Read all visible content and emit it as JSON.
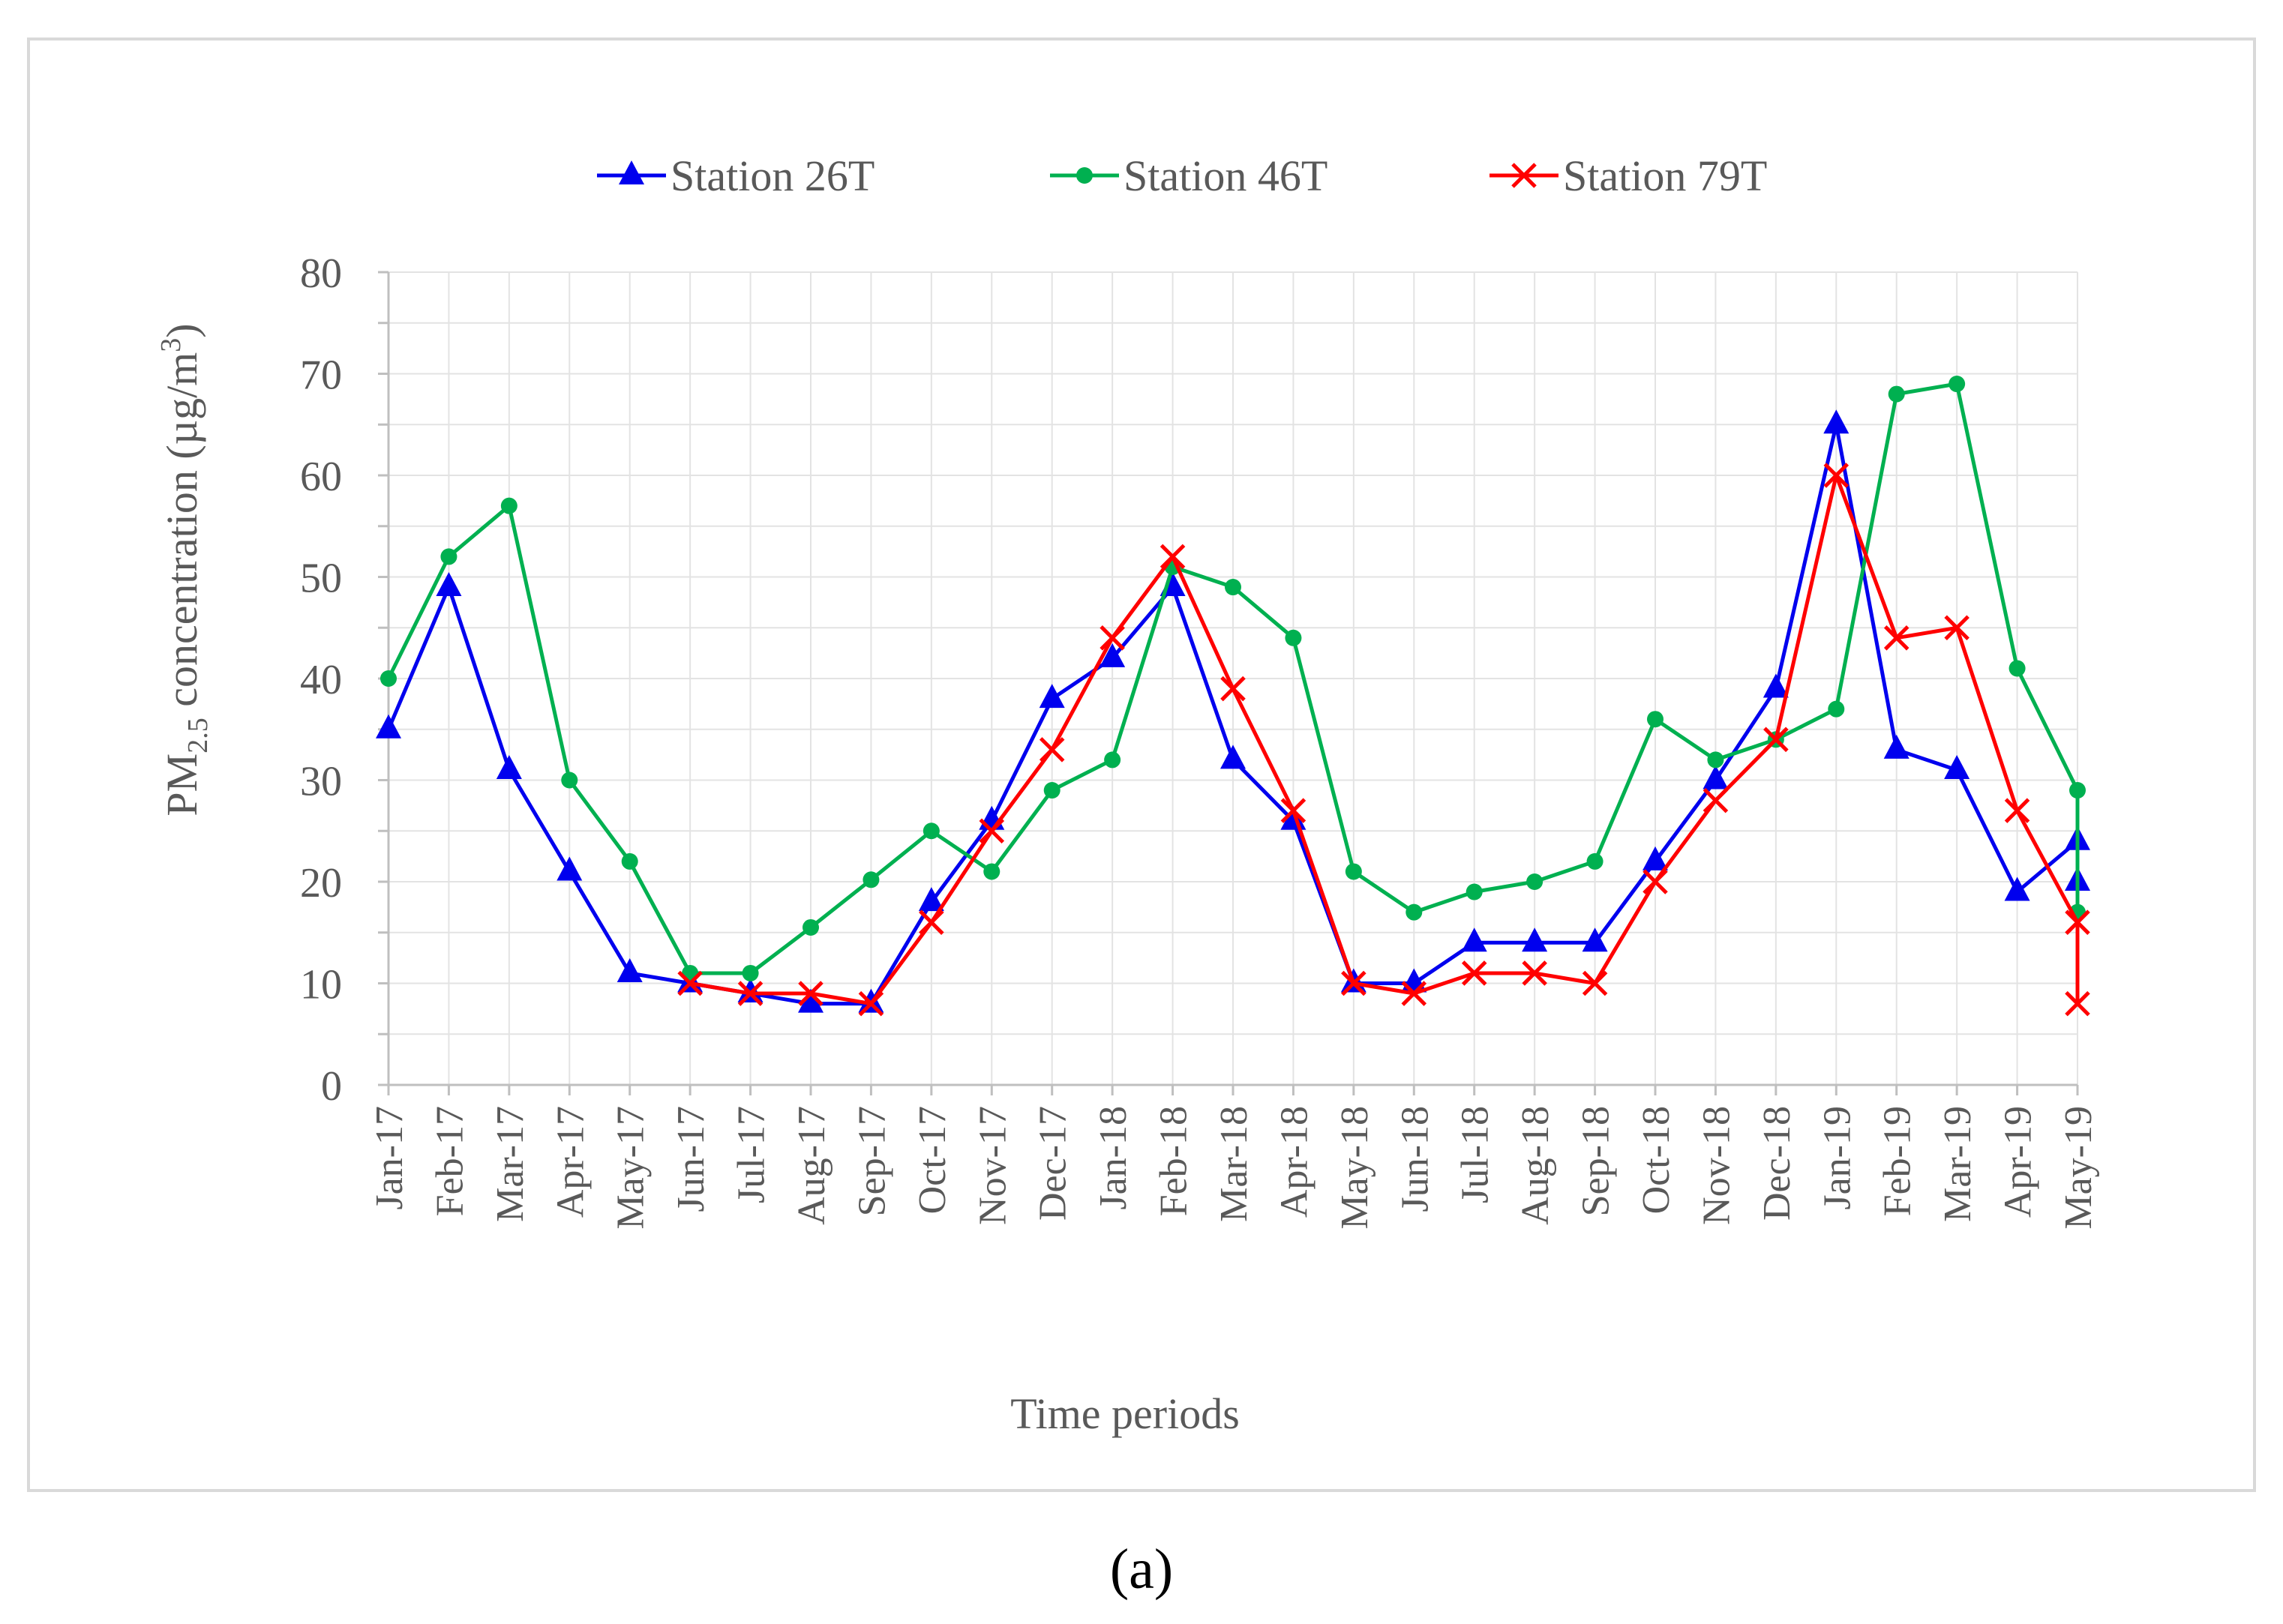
{
  "caption": "(a)",
  "chart_data": {
    "type": "line",
    "title": "",
    "xlabel": "Time periods",
    "ylabel_main": "PM",
    "ylabel_sub": "2.5",
    "ylabel_rest": " concentration (µg/m",
    "ylabel_sup": "3",
    "ylabel_close": ")",
    "ylim": [
      0,
      80
    ],
    "yticks": [
      0,
      10,
      20,
      30,
      40,
      50,
      60,
      70,
      80
    ],
    "grid": true,
    "legend_position": "top-center",
    "categories": [
      "Jan-17",
      "Feb-17",
      "Mar-17",
      "Apr-17",
      "May-17",
      "Jun-17",
      "Jul-17",
      "Aug-17",
      "Sep-17",
      "Oct-17",
      "Nov-17",
      "Dec-17",
      "Jan-18",
      "Feb-18",
      "Mar-18",
      "Apr-18",
      "May-18",
      "Jun-18",
      "Jul-18",
      "Aug-18",
      "Sep-18",
      "Oct-18",
      "Nov-18",
      "Dec-18",
      "Jan-19",
      "Feb-19",
      "Mar-19",
      "Apr-19",
      "May-19"
    ],
    "series": [
      {
        "name": "Station 26T",
        "color": "#0000ee",
        "marker": "triangle",
        "points": [
          [
            0,
            35
          ],
          [
            1,
            49
          ],
          [
            2,
            31
          ],
          [
            3,
            21
          ],
          [
            4,
            11
          ],
          [
            5,
            10
          ],
          [
            6,
            9
          ],
          [
            7,
            8
          ],
          [
            8,
            8
          ],
          [
            9,
            18
          ],
          [
            10,
            26
          ],
          [
            11,
            38
          ],
          [
            12,
            42
          ],
          [
            13,
            49
          ],
          [
            14,
            32
          ],
          [
            15,
            26
          ],
          [
            16,
            10
          ],
          [
            17,
            10
          ],
          [
            18,
            14
          ],
          [
            19,
            14
          ],
          [
            20,
            14
          ],
          [
            21,
            22
          ],
          [
            22,
            30
          ],
          [
            23,
            39
          ],
          [
            24,
            65
          ],
          [
            25,
            33
          ],
          [
            26,
            31
          ],
          [
            27,
            19
          ],
          [
            28,
            24
          ],
          [
            28,
            20
          ]
        ]
      },
      {
        "name": "Station 46T",
        "color": "#00b050",
        "marker": "circle",
        "points": [
          [
            0,
            40
          ],
          [
            1,
            52
          ],
          [
            2,
            57
          ],
          [
            3,
            30
          ],
          [
            4,
            22
          ],
          [
            5,
            11
          ],
          [
            6,
            11
          ],
          [
            7,
            15.5
          ],
          [
            8,
            20.2
          ],
          [
            9,
            25
          ],
          [
            10,
            21
          ],
          [
            11,
            29
          ],
          [
            12,
            32
          ],
          [
            13,
            51
          ],
          [
            14,
            49
          ],
          [
            15,
            44
          ],
          [
            16,
            21
          ],
          [
            17,
            17
          ],
          [
            18,
            19
          ],
          [
            19,
            20
          ],
          [
            20,
            22
          ],
          [
            21,
            36
          ],
          [
            22,
            32
          ],
          [
            23,
            34
          ],
          [
            24,
            37
          ],
          [
            25,
            68
          ],
          [
            26,
            69
          ],
          [
            27,
            41
          ],
          [
            28,
            29
          ],
          [
            28,
            17
          ]
        ]
      },
      {
        "name": "Station 79T",
        "color": "#ff0000",
        "marker": "x",
        "points": [
          [
            5,
            10
          ],
          [
            6,
            9
          ],
          [
            7,
            9
          ],
          [
            8,
            8
          ],
          [
            9,
            16
          ],
          [
            10,
            25
          ],
          [
            11,
            33
          ],
          [
            12,
            44
          ],
          [
            13,
            52
          ],
          [
            14,
            39
          ],
          [
            15,
            27
          ],
          [
            16,
            10
          ],
          [
            17,
            9
          ],
          [
            18,
            11
          ],
          [
            19,
            11
          ],
          [
            20,
            10
          ],
          [
            21,
            20
          ],
          [
            22,
            28
          ],
          [
            23,
            34
          ],
          [
            24,
            60
          ],
          [
            25,
            44
          ],
          [
            26,
            45
          ],
          [
            27,
            27
          ],
          [
            28,
            16
          ],
          [
            28,
            8
          ]
        ]
      }
    ]
  }
}
